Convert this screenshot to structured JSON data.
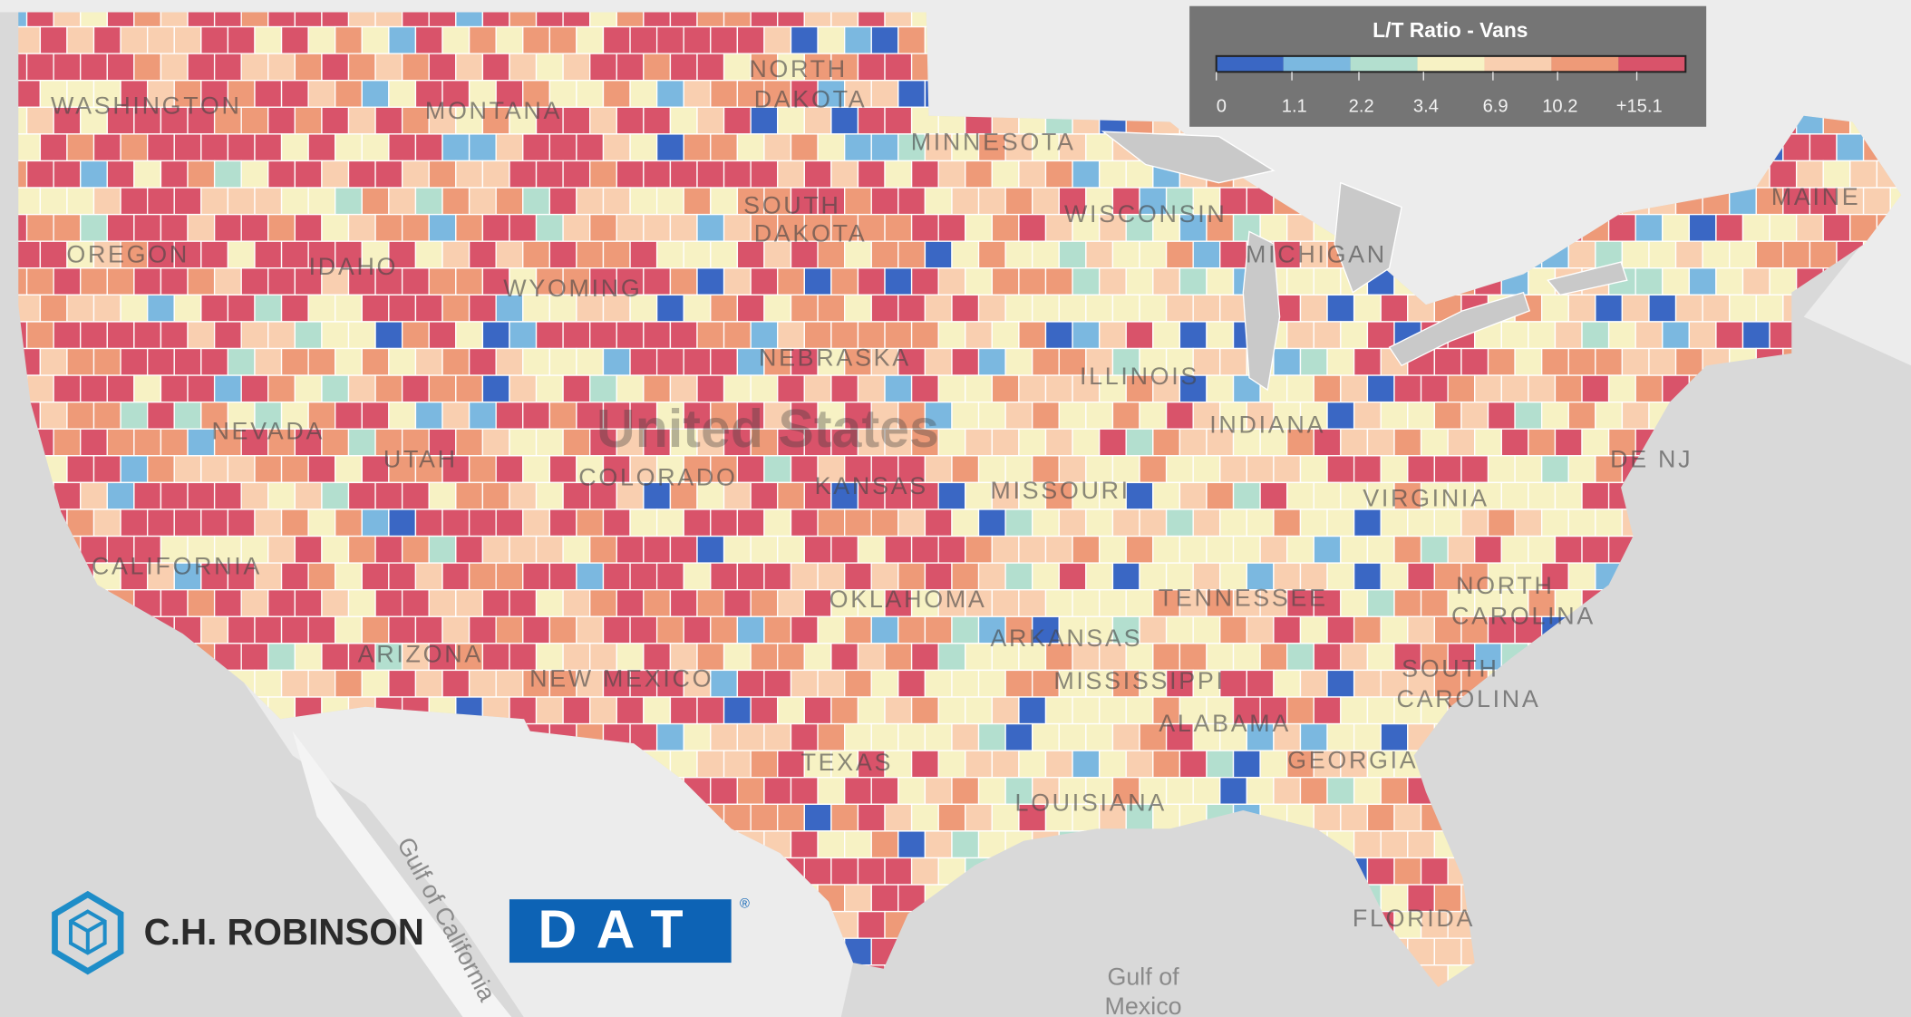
{
  "legend": {
    "title": "L/T Ratio - Vans",
    "labels": [
      "0",
      "1.1",
      "2.2",
      "3.4",
      "6.9",
      "10.2",
      "+15.1"
    ],
    "colors": [
      "#3a67c4",
      "#7bb8e0",
      "#b3dfcf",
      "#f7f2c4",
      "#f9cfb0",
      "#ee9a78",
      "#d9536a"
    ]
  },
  "map": {
    "country": "United States",
    "states": [
      "WASHINGTON",
      "MONTANA",
      "NORTH",
      "DAKOTA",
      "MINNESOTA",
      "SOUTH",
      "DAKOTA",
      "WISCONSIN",
      "MICHIGAN",
      "OREGON",
      "IDAHO",
      "WYOMING",
      "NEBRASKA",
      "NEVADA",
      "UTAH",
      "COLORADO",
      "KANSAS",
      "MISSOURI",
      "ILLINOIS",
      "INDIANA",
      "CALIFORNIA",
      "ARIZONA",
      "NEW MEXICO",
      "OKLAHOMA",
      "ARKANSAS",
      "TENNESSEE",
      "MISSISSIPPI",
      "ALABAMA",
      "GEORGIA",
      "TEXAS",
      "LOUISIANA",
      "SOUTH",
      "CAROLINA",
      "NORTH",
      "CAROLINA",
      "VIRGINIA",
      "MAINE",
      "FLORIDA",
      "DE NJ"
    ],
    "water": [
      "Gulf of California",
      "Gulf of",
      "Mexico"
    ]
  },
  "logos": {
    "robinson": "C.H. ROBINSON",
    "dat": "DAT",
    "dat_mark": "®"
  }
}
